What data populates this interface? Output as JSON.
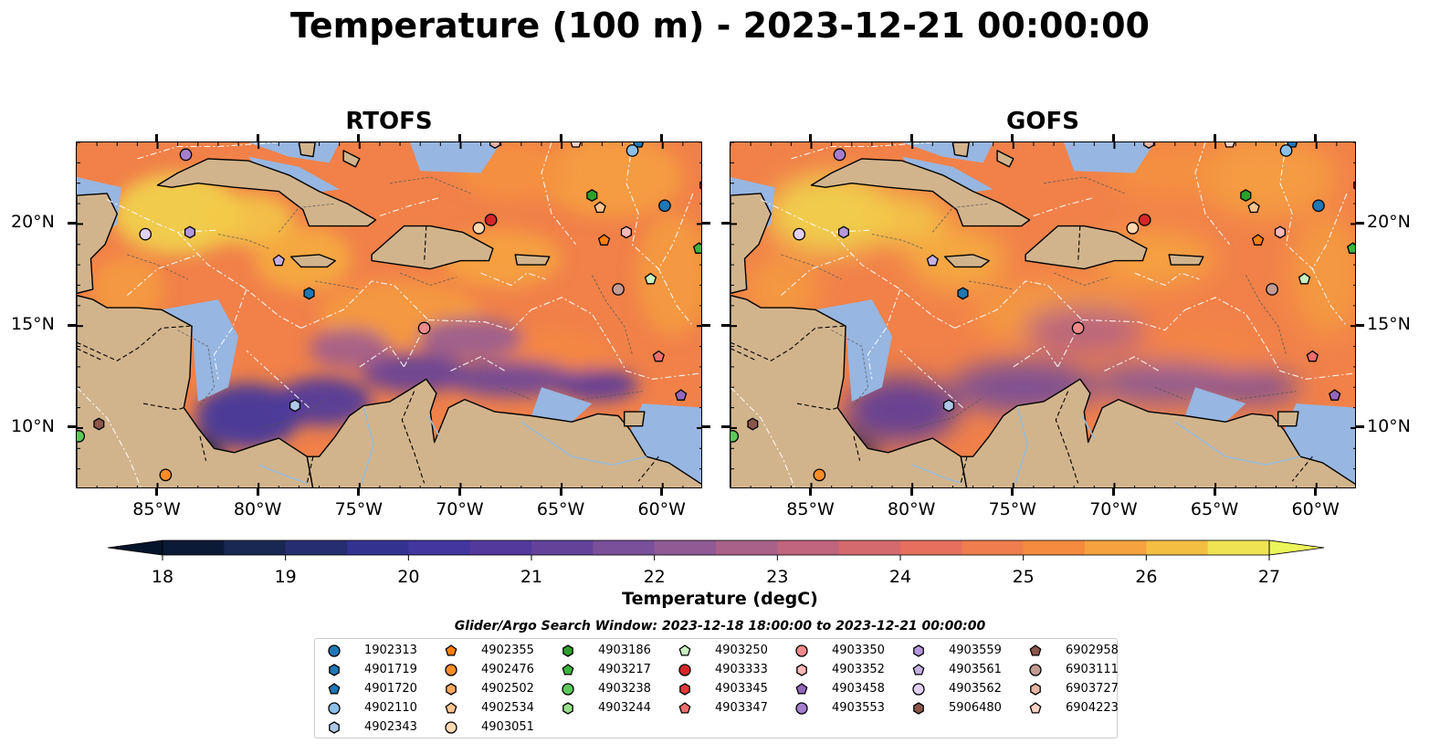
{
  "title": "Temperature (100 m) - 2023-12-21 00:00:00",
  "panels": [
    {
      "title": "RTOFS",
      "variant": "rtofs"
    },
    {
      "title": "GOFS",
      "variant": "gofs"
    }
  ],
  "map": {
    "lon_range": [
      -89,
      -58
    ],
    "lat_range": [
      7,
      24
    ],
    "lon_ticks": [
      {
        "value": -85,
        "label": "85°W"
      },
      {
        "value": -80,
        "label": "80°W"
      },
      {
        "value": -75,
        "label": "75°W"
      },
      {
        "value": -70,
        "label": "70°W"
      },
      {
        "value": -65,
        "label": "65°W"
      },
      {
        "value": -60,
        "label": "60°W"
      }
    ],
    "lat_ticks": [
      {
        "value": 20,
        "label": "20°N"
      },
      {
        "value": 15,
        "label": "15°N"
      },
      {
        "value": 10,
        "label": "10°N"
      }
    ],
    "colors": {
      "land": "#d2b48c",
      "shelf": "#97b6e1",
      "deep_cold": "#0b2034",
      "coastline": "#000000",
      "eez_lines": "#ffffff"
    }
  },
  "colorbar": {
    "min": 18,
    "max": 27,
    "step": 0.5,
    "ticks": [
      "18",
      "19",
      "20",
      "21",
      "22",
      "23",
      "24",
      "25",
      "26",
      "27"
    ],
    "label": "Temperature (degC)",
    "colormap": "thermal",
    "extend": "both"
  },
  "legend": {
    "title": "Glider/Argo Search Window: 2023-12-18 18:00:00 to 2023-12-21 00:00:00",
    "columns": [
      [
        {
          "id": "1902313",
          "color": "#1f77b4",
          "marker": "circle"
        },
        {
          "id": "4901719",
          "color": "#1f77b4",
          "marker": "hexagon"
        },
        {
          "id": "4901720",
          "color": "#1f77b4",
          "marker": "pentagon"
        },
        {
          "id": "4902110",
          "color": "#8cbfe8",
          "marker": "circle"
        },
        {
          "id": "4902343",
          "color": "#aec7e8",
          "marker": "hexagon"
        }
      ],
      [
        {
          "id": "4902355",
          "color": "#ff7f0e",
          "marker": "pentagon"
        },
        {
          "id": "4902476",
          "color": "#ff8c26",
          "marker": "circle"
        },
        {
          "id": "4902502",
          "color": "#ffa75e",
          "marker": "hexagon"
        },
        {
          "id": "4902534",
          "color": "#ffc391",
          "marker": "pentagon"
        },
        {
          "id": "4903051",
          "color": "#ffd8b0",
          "marker": "circle"
        }
      ],
      [
        {
          "id": "4903186",
          "color": "#2ca02c",
          "marker": "hexagon"
        },
        {
          "id": "4903217",
          "color": "#3cb43c",
          "marker": "pentagon"
        },
        {
          "id": "4903238",
          "color": "#5cc85c",
          "marker": "circle"
        },
        {
          "id": "4903244",
          "color": "#98df8a",
          "marker": "hexagon"
        }
      ],
      [
        {
          "id": "4903250",
          "color": "#c8f0c0",
          "marker": "pentagon"
        },
        {
          "id": "4903333",
          "color": "#d62728",
          "marker": "circle"
        },
        {
          "id": "4903345",
          "color": "#e03a3a",
          "marker": "hexagon"
        },
        {
          "id": "4903347",
          "color": "#ee6e6e",
          "marker": "pentagon"
        }
      ],
      [
        {
          "id": "4903350",
          "color": "#f08a8a",
          "marker": "circle"
        },
        {
          "id": "4903352",
          "color": "#ffb8b8",
          "marker": "hexagon"
        },
        {
          "id": "4903458",
          "color": "#9467bd",
          "marker": "pentagon"
        },
        {
          "id": "4903553",
          "color": "#a47fcd",
          "marker": "circle"
        }
      ],
      [
        {
          "id": "4903559",
          "color": "#b497dc",
          "marker": "hexagon"
        },
        {
          "id": "4903561",
          "color": "#c5b0e6",
          "marker": "pentagon"
        },
        {
          "id": "4903562",
          "color": "#e2d0f5",
          "marker": "circle"
        },
        {
          "id": "5906480",
          "color": "#8c564b",
          "marker": "hexagon"
        }
      ],
      [
        {
          "id": "6902958",
          "color": "#8c564b",
          "marker": "pentagon"
        },
        {
          "id": "6903111",
          "color": "#c49c94",
          "marker": "circle"
        },
        {
          "id": "6903727",
          "color": "#e6b4a4",
          "marker": "hexagon"
        },
        {
          "id": "6904223",
          "color": "#ffd2c4",
          "marker": "pentagon"
        }
      ]
    ]
  },
  "floats": [
    {
      "id": "1902313",
      "lon": -59.9,
      "lat": 20.9
    },
    {
      "id": "4901720",
      "lon": -61.2,
      "lat": 24.0
    },
    {
      "id": "4902110",
      "lon": -61.5,
      "lat": 23.6
    },
    {
      "id": "4901719",
      "lon": -77.5,
      "lat": 16.6
    },
    {
      "id": "4902343",
      "lon": -78.2,
      "lat": 11.1
    },
    {
      "id": "4902355",
      "lon": -62.9,
      "lat": 19.2
    },
    {
      "id": "4902476",
      "lon": -84.6,
      "lat": 7.7
    },
    {
      "id": "4902534",
      "lon": -63.1,
      "lat": 20.8
    },
    {
      "id": "4903051",
      "lon": -69.1,
      "lat": 19.8
    },
    {
      "id": "4903186",
      "lon": -63.5,
      "lat": 21.4
    },
    {
      "id": "4903217",
      "lon": -58.2,
      "lat": 18.8
    },
    {
      "id": "4903238",
      "lon": -88.9,
      "lat": 9.6
    },
    {
      "id": "4903250",
      "lon": -60.6,
      "lat": 17.3
    },
    {
      "id": "4903333",
      "lon": -68.5,
      "lat": 20.2
    },
    {
      "id": "4903345",
      "lon": -57.9,
      "lat": 21.9
    },
    {
      "id": "4903347",
      "lon": -60.2,
      "lat": 13.5
    },
    {
      "id": "4903350",
      "lon": -71.8,
      "lat": 14.9
    },
    {
      "id": "4903352",
      "lon": -61.8,
      "lat": 19.6
    },
    {
      "id": "4903458",
      "lon": -59.1,
      "lat": 11.6
    },
    {
      "id": "4903553",
      "lon": -83.6,
      "lat": 23.4
    },
    {
      "id": "4903559",
      "lon": -83.4,
      "lat": 19.6
    },
    {
      "id": "4903561",
      "lon": -79.0,
      "lat": 18.2
    },
    {
      "id": "4903562",
      "lon": -85.6,
      "lat": 19.5
    },
    {
      "id": "5906480",
      "lon": -87.9,
      "lat": 10.2
    },
    {
      "id": "6903111",
      "lon": -62.2,
      "lat": 16.8
    },
    {
      "id": "6903727",
      "lon": -68.3,
      "lat": 24.0
    },
    {
      "id": "6904223",
      "lon": -64.3,
      "lat": 24.0
    }
  ]
}
